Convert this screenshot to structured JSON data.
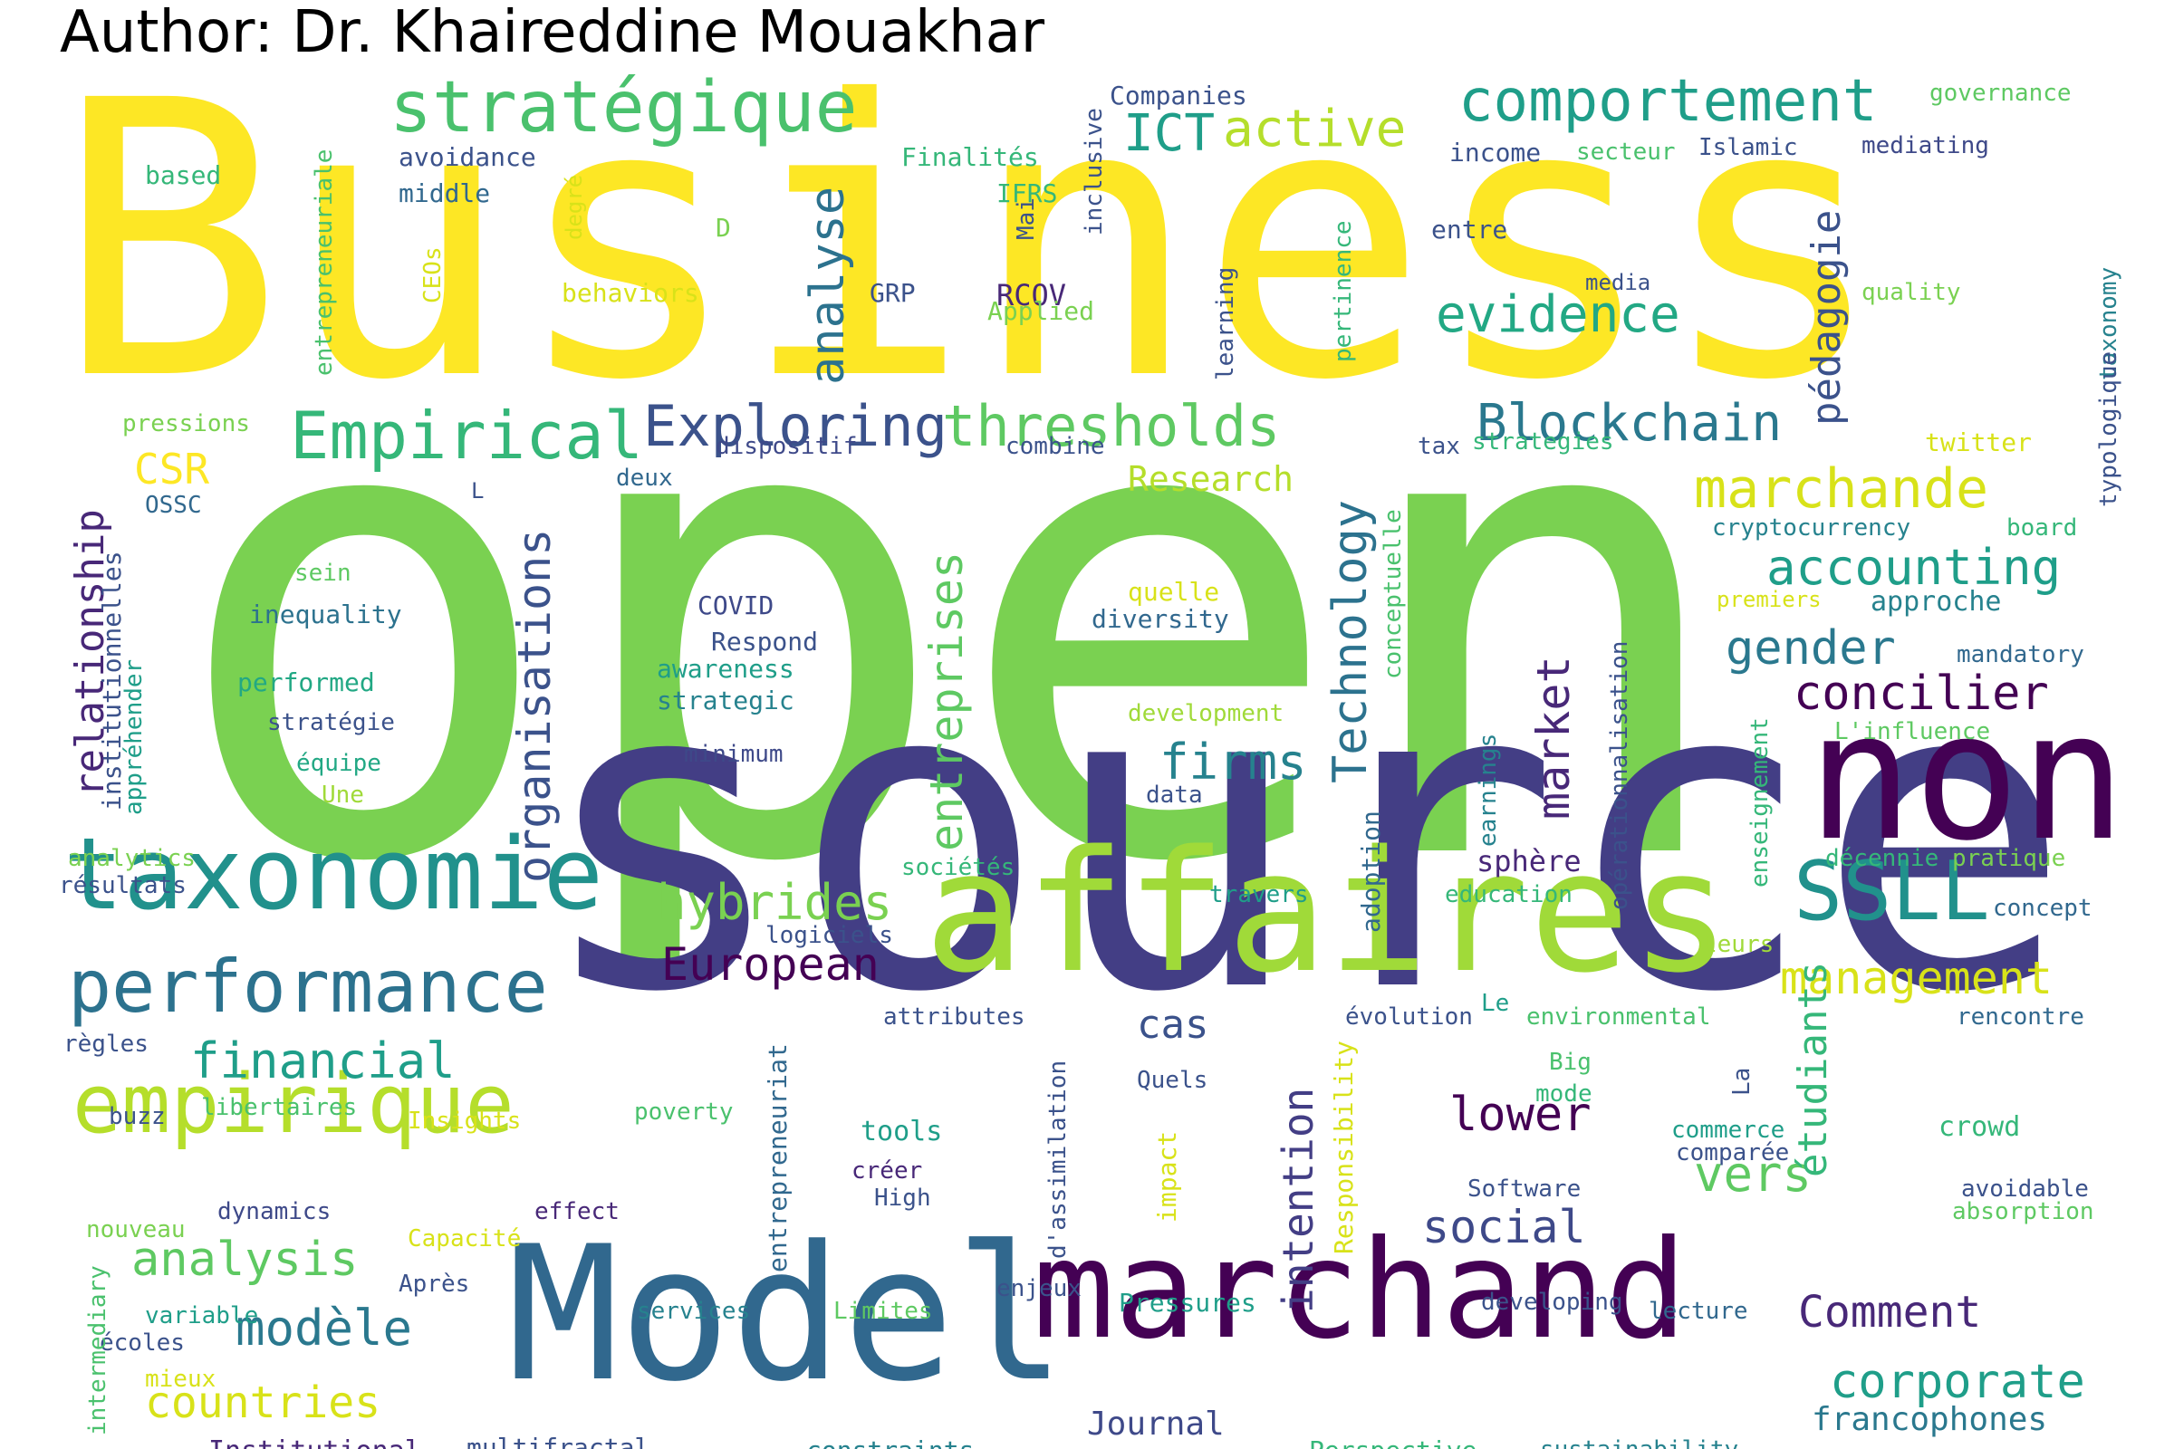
{
  "author": "Author: Dr. Khaireddine Mouakhar",
  "palette": [
    "#fde725",
    "#b5de2b",
    "#6ece58",
    "#35b779",
    "#1f9e89",
    "#26828e",
    "#31688e",
    "#3e4989",
    "#482878",
    "#440154"
  ],
  "words": [
    {
      "t": "Business",
      "c": 2
    },
    {
      "t": "open",
      "c": 0
    },
    {
      "t": "source",
      "c": 0
    },
    {
      "t": "Model",
      "c": 0
    },
    {
      "t": "marchand",
      "c": 3
    },
    {
      "t": "affaires",
      "c": 0
    },
    {
      "t": "non",
      "c": 4
    },
    {
      "t": "taxonomie",
      "c": 1
    },
    {
      "t": "performance",
      "c": 0
    },
    {
      "t": "empirique",
      "c": 0
    },
    {
      "t": "stratégique",
      "c": 1
    },
    {
      "t": "comportement",
      "c": 0
    },
    {
      "t": "Empirical",
      "c": 1
    },
    {
      "t": "Exploring",
      "c": 0
    },
    {
      "t": "thresholds",
      "c": 1
    },
    {
      "t": "Blockchain",
      "c": 0
    },
    {
      "t": "evidence",
      "c": 0
    },
    {
      "t": "active",
      "c": 0
    },
    {
      "t": "ICT",
      "c": 0
    },
    {
      "t": "marchande",
      "c": 0
    },
    {
      "t": "accounting",
      "c": 1
    },
    {
      "t": "gender",
      "c": 0
    },
    {
      "t": "concilier",
      "c": 0
    },
    {
      "t": "firms",
      "c": 0
    },
    {
      "t": "SSLL",
      "c": 0
    },
    {
      "t": "hybrides",
      "c": 0
    },
    {
      "t": "European",
      "c": 0
    },
    {
      "t": "management",
      "c": 0
    },
    {
      "t": "cas",
      "c": 0
    },
    {
      "t": "lower",
      "c": 0
    },
    {
      "t": "social",
      "c": 0
    },
    {
      "t": "vers",
      "c": 0
    },
    {
      "t": "Comment",
      "c": 0
    },
    {
      "t": "corporate",
      "c": 0
    },
    {
      "t": "francophones",
      "c": 0
    },
    {
      "t": "financial",
      "c": 0
    },
    {
      "t": "analysis",
      "c": 0
    },
    {
      "t": "modèle",
      "c": 0
    },
    {
      "t": "countries",
      "c": 0
    },
    {
      "t": "CSR",
      "c": 0
    },
    {
      "t": "analyse",
      "c": 0
    },
    {
      "t": "organisations",
      "c": 0
    },
    {
      "t": "entreprises",
      "c": 0
    },
    {
      "t": "Technology",
      "c": 0
    },
    {
      "t": "market",
      "c": 0
    },
    {
      "t": "relationship",
      "c": 0
    },
    {
      "t": "pédagogie",
      "c": 0
    },
    {
      "t": "intention",
      "c": 0
    },
    {
      "t": "étudiants",
      "c": 0
    },
    {
      "t": "Research",
      "c": 0
    },
    {
      "t": "Journal",
      "c": 0
    },
    {
      "t": "Institutional",
      "c": 0
    },
    {
      "t": "multifractal",
      "c": 0
    },
    {
      "t": "constraints",
      "c": 0
    },
    {
      "t": "Perspective",
      "c": 0
    },
    {
      "t": "sustainability",
      "c": 0
    },
    {
      "t": "Companies",
      "c": 0
    },
    {
      "t": "governance",
      "c": 0
    },
    {
      "t": "income",
      "c": 0
    },
    {
      "t": "secteur",
      "c": 0
    },
    {
      "t": "Islamic",
      "c": 0
    },
    {
      "t": "mediating",
      "c": 0
    },
    {
      "t": "avoidance",
      "c": 0
    },
    {
      "t": "middle",
      "c": 0
    },
    {
      "t": "Finalités",
      "c": 0
    },
    {
      "t": "IFRS",
      "c": 0
    },
    {
      "t": "based",
      "c": 0
    },
    {
      "t": "D",
      "c": 0
    },
    {
      "t": "entre",
      "c": 0
    },
    {
      "t": "media",
      "c": 0
    },
    {
      "t": "quality",
      "c": 0
    },
    {
      "t": "behaviors",
      "c": 0
    },
    {
      "t": "RCOV",
      "c": 0
    },
    {
      "t": "GRP",
      "c": 0
    },
    {
      "t": "Applied",
      "c": 0
    },
    {
      "t": "pressions",
      "c": 0
    },
    {
      "t": "dispositif",
      "c": 0
    },
    {
      "t": "combine",
      "c": 0
    },
    {
      "t": "tax",
      "c": 0
    },
    {
      "t": "strategies",
      "c": 0
    },
    {
      "t": "twitter",
      "c": 0
    },
    {
      "t": "deux",
      "c": 0
    },
    {
      "t": "L",
      "c": 0
    },
    {
      "t": "OSSC",
      "c": 0
    },
    {
      "t": "cryptocurrency",
      "c": 0
    },
    {
      "t": "board",
      "c": 0
    },
    {
      "t": "sein",
      "c": 0
    },
    {
      "t": "quelle",
      "c": 0
    },
    {
      "t": "inequality",
      "c": 0
    },
    {
      "t": "COVID",
      "c": 0
    },
    {
      "t": "diversity",
      "c": 0
    },
    {
      "t": "premiers",
      "c": 0
    },
    {
      "t": "approche",
      "c": 0
    },
    {
      "t": "Respond",
      "c": 0
    },
    {
      "t": "awareness",
      "c": 0
    },
    {
      "t": "mandatory",
      "c": 0
    },
    {
      "t": "performed",
      "c": 0
    },
    {
      "t": "strategic",
      "c": 0
    },
    {
      "t": "development",
      "c": 0
    },
    {
      "t": "L'influence",
      "c": 0
    },
    {
      "t": "stratégie",
      "c": 0
    },
    {
      "t": "minimum",
      "c": 0
    },
    {
      "t": "équipe",
      "c": 0
    },
    {
      "t": "Une",
      "c": 0
    },
    {
      "t": "data",
      "c": 0
    },
    {
      "t": "analytics",
      "c": 0
    },
    {
      "t": "sphère",
      "c": 0
    },
    {
      "t": "décennie",
      "c": 0
    },
    {
      "t": "pratique",
      "c": 0
    },
    {
      "t": "résultats",
      "c": 0
    },
    {
      "t": "sociétés",
      "c": 0
    },
    {
      "t": "travers",
      "c": 0
    },
    {
      "t": "education",
      "c": 0
    },
    {
      "t": "concept",
      "c": 0
    },
    {
      "t": "logiciels",
      "c": 0
    },
    {
      "t": "leurs",
      "c": 0
    },
    {
      "t": "Le",
      "c": 0
    },
    {
      "t": "attributes",
      "c": 0
    },
    {
      "t": "évolution",
      "c": 0
    },
    {
      "t": "environmental",
      "c": 0
    },
    {
      "t": "rencontre",
      "c": 0
    },
    {
      "t": "règles",
      "c": 0
    },
    {
      "t": "Big",
      "c": 0
    },
    {
      "t": "Quels",
      "c": 0
    },
    {
      "t": "mode",
      "c": 0
    },
    {
      "t": "buzz",
      "c": 0
    },
    {
      "t": "libertaires",
      "c": 0
    },
    {
      "t": "Insights",
      "c": 0
    },
    {
      "t": "poverty",
      "c": 0
    },
    {
      "t": "tools",
      "c": 0
    },
    {
      "t": "commerce",
      "c": 0
    },
    {
      "t": "crowd",
      "c": 0
    },
    {
      "t": "comparée",
      "c": 0
    },
    {
      "t": "créer",
      "c": 0
    },
    {
      "t": "High",
      "c": 0
    },
    {
      "t": "Software",
      "c": 0
    },
    {
      "t": "avoidable",
      "c": 0
    },
    {
      "t": "dynamics",
      "c": 0
    },
    {
      "t": "effect",
      "c": 0
    },
    {
      "t": "absorption",
      "c": 0
    },
    {
      "t": "nouveau",
      "c": 0
    },
    {
      "t": "Capacité",
      "c": 0
    },
    {
      "t": "Après",
      "c": 0
    },
    {
      "t": "enjeux",
      "c": 0
    },
    {
      "t": "Pressures",
      "c": 0
    },
    {
      "t": "developing",
      "c": 0
    },
    {
      "t": "lecture",
      "c": 0
    },
    {
      "t": "variable",
      "c": 0
    },
    {
      "t": "services",
      "c": 0
    },
    {
      "t": "Limites",
      "c": 0
    },
    {
      "t": "écoles",
      "c": 0
    },
    {
      "t": "mieux",
      "c": 0
    },
    {
      "t": "entrepreneuriale",
      "c": 0
    },
    {
      "t": "degré",
      "c": 0
    },
    {
      "t": "CEOs",
      "c": 0
    },
    {
      "t": "Mai",
      "c": 0
    },
    {
      "t": "inclusive",
      "c": 0
    },
    {
      "t": "learning",
      "c": 0
    },
    {
      "t": "pertinence",
      "c": 0
    },
    {
      "t": "taxonomy",
      "c": 0
    },
    {
      "t": "typologique",
      "c": 0
    },
    {
      "t": "conceptuelle",
      "c": 0
    },
    {
      "t": "opérationnalisation",
      "c": 0
    },
    {
      "t": "institutionnelles",
      "c": 0
    },
    {
      "t": "appréhender",
      "c": 0
    },
    {
      "t": "earnings",
      "c": 0
    },
    {
      "t": "enseignement",
      "c": 0
    },
    {
      "t": "adoption",
      "c": 0
    },
    {
      "t": "entrepreneuriat",
      "c": 0
    },
    {
      "t": "d'assimilation",
      "c": 0
    },
    {
      "t": "impact",
      "c": 0
    },
    {
      "t": "Responsibility",
      "c": 0
    },
    {
      "t": "La",
      "c": 0
    },
    {
      "t": "intermediary",
      "c": 0
    }
  ]
}
